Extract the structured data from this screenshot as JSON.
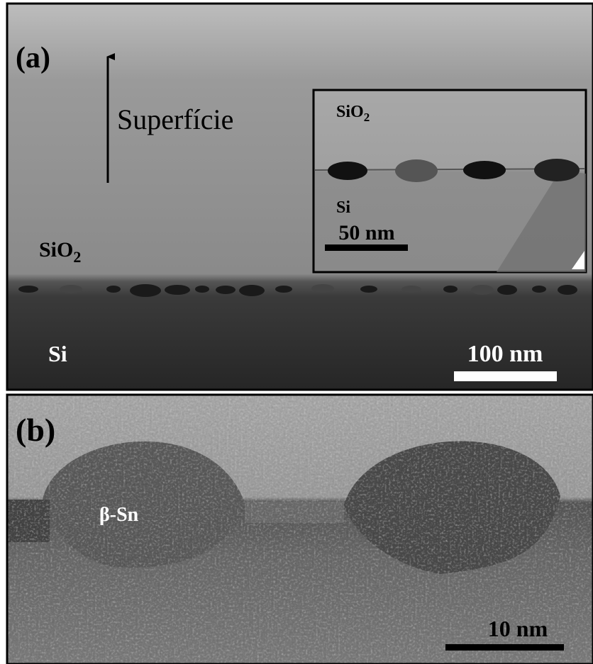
{
  "panel_a": {
    "label": "(a)",
    "arrow_label": "Superfície",
    "oxide_label": {
      "main": "SiO",
      "sub": "2"
    },
    "substrate_label": "Si",
    "scale_bar": "100 nm",
    "inset": {
      "oxide_label": {
        "main": "SiO",
        "sub": "2"
      },
      "substrate_label": "Si",
      "scale_bar": "50 nm"
    }
  },
  "panel_b": {
    "label": "(b)",
    "particle_label": "β-Sn",
    "scale_bar": "10 nm"
  }
}
